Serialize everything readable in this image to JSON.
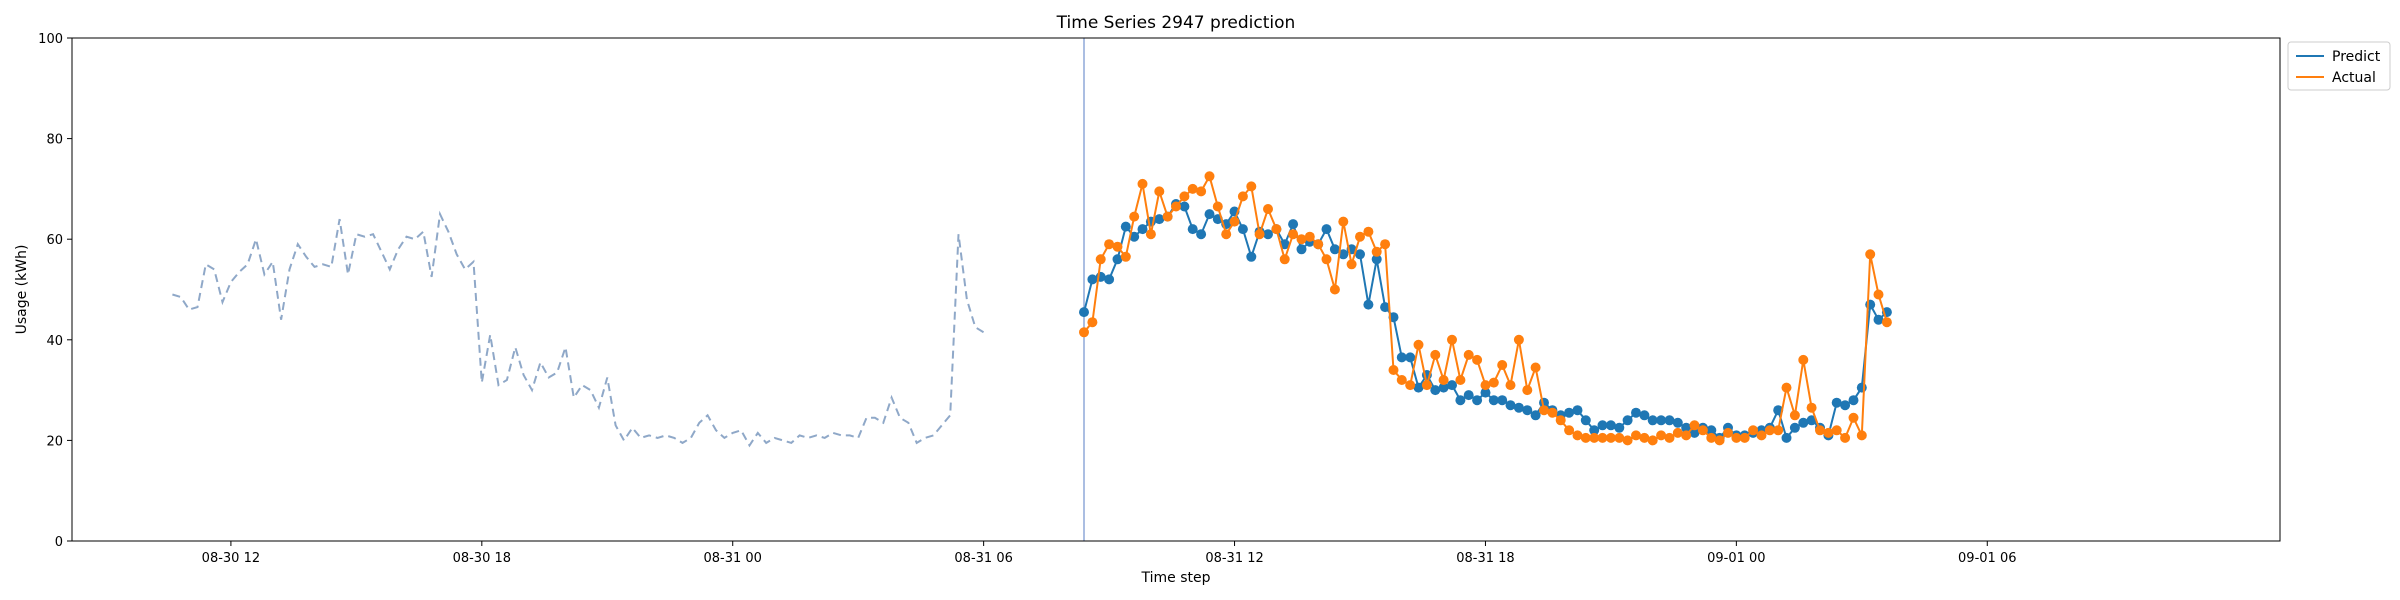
{
  "chart_data": {
    "type": "line",
    "title": "Time Series 2947 prediction",
    "xlabel": "Time step",
    "ylabel": "Usage (kWh)",
    "ylim": [
      0,
      100
    ],
    "yticks": [
      0,
      20,
      40,
      60,
      80,
      100
    ],
    "xlim": [
      -7,
      257
    ],
    "xticks": [
      {
        "pos": 12,
        "label": "08-30 12"
      },
      {
        "pos": 42,
        "label": "08-30 18"
      },
      {
        "pos": 72,
        "label": "08-31 00"
      },
      {
        "pos": 102,
        "label": "08-31 06"
      },
      {
        "pos": 132,
        "label": "08-31 12"
      },
      {
        "pos": 162,
        "label": "08-31 18"
      },
      {
        "pos": 192,
        "label": "09-01 00"
      },
      {
        "pos": 222,
        "label": "09-01 06"
      }
    ],
    "forecast_start": 114,
    "legend_position": "upper-right-outside",
    "history": {
      "color": "#8fa8c8",
      "x_start": 5,
      "values": [
        49,
        48.5,
        46,
        46.5,
        55,
        54,
        47.5,
        51.5,
        53.5,
        55,
        60,
        53,
        55.5,
        44,
        54,
        59,
        56.5,
        54.5,
        55,
        54.5,
        64,
        53,
        61,
        60.5,
        61,
        57.5,
        54,
        58,
        60.5,
        60,
        61.5,
        52.5,
        65,
        61.5,
        57,
        54,
        55.5,
        31.5,
        41,
        31,
        32,
        38.5,
        33,
        30,
        35.5,
        32.5,
        33.5,
        38.5,
        28.5,
        31,
        30,
        26.5,
        32.5,
        23,
        20,
        22.5,
        20.5,
        21,
        20.5,
        21,
        20.5,
        19.5,
        20.5,
        23.5,
        25,
        22,
        20.5,
        21.5,
        22,
        19,
        21.5,
        19.5,
        20.5,
        20,
        19.5,
        21,
        20.5,
        21,
        20.5,
        21.5,
        21,
        21,
        20.5,
        24.5,
        24.5,
        23.5,
        28.5,
        24.5,
        23.5,
        19.5,
        20.5,
        21,
        23,
        25,
        61,
        48,
        42.5,
        41.5
      ]
    },
    "series": [
      {
        "name": "Predict",
        "color": "#1f77b4",
        "x_start": 114,
        "values": [
          45.5,
          52,
          52.5,
          52,
          56,
          62.5,
          60.5,
          62,
          63.5,
          64,
          64.5,
          67,
          66.5,
          62,
          61,
          65,
          64,
          63,
          65.5,
          62,
          56.5,
          61.5,
          61,
          62,
          59,
          63,
          58,
          59.5,
          59,
          62,
          58,
          57,
          58,
          57,
          47,
          56,
          46.5,
          44.5,
          36.5,
          36.5,
          30.5,
          33,
          30,
          30.5,
          31,
          28,
          29,
          28,
          29.5,
          28,
          28,
          27,
          26.5,
          26,
          25,
          27.5,
          26,
          25,
          25.5,
          26,
          24,
          22,
          23,
          23,
          22.5,
          24,
          25.5,
          25,
          24,
          24,
          24,
          23.5,
          22.5,
          21.5,
          22.5,
          22,
          20.5,
          22.5,
          21,
          21,
          21.5,
          22,
          22.5,
          26,
          20.5,
          22.5,
          23.5,
          24,
          22.5,
          21,
          27.5,
          27,
          28,
          30.5,
          47,
          44,
          45.5
        ]
      },
      {
        "name": "Actual",
        "color": "#ff7f0e",
        "x_start": 114,
        "values": [
          41.5,
          43.5,
          56,
          59,
          58.5,
          56.5,
          64.5,
          71,
          61,
          69.5,
          64.5,
          66.5,
          68.5,
          70,
          69.5,
          72.5,
          66.5,
          61,
          63.5,
          68.5,
          70.5,
          61,
          66,
          62,
          56,
          61,
          60,
          60.5,
          59,
          56,
          50,
          63.5,
          55,
          60.5,
          61.5,
          57.5,
          59,
          34,
          32,
          31,
          39,
          31,
          37,
          32,
          40,
          32,
          37,
          36,
          31,
          31.5,
          35,
          31,
          40,
          30,
          34.5,
          26,
          25.5,
          24,
          22,
          21,
          20.5,
          20.5,
          20.5,
          20.5,
          20.5,
          20,
          21,
          20.5,
          20,
          21,
          20.5,
          21.5,
          21,
          23,
          22,
          20.5,
          20,
          21.5,
          20.5,
          20.5,
          22,
          21,
          22,
          22,
          30.5,
          25,
          36,
          26.5,
          22,
          21.5,
          22,
          20.5,
          24.5,
          21,
          57,
          49,
          43.5
        ]
      }
    ]
  }
}
